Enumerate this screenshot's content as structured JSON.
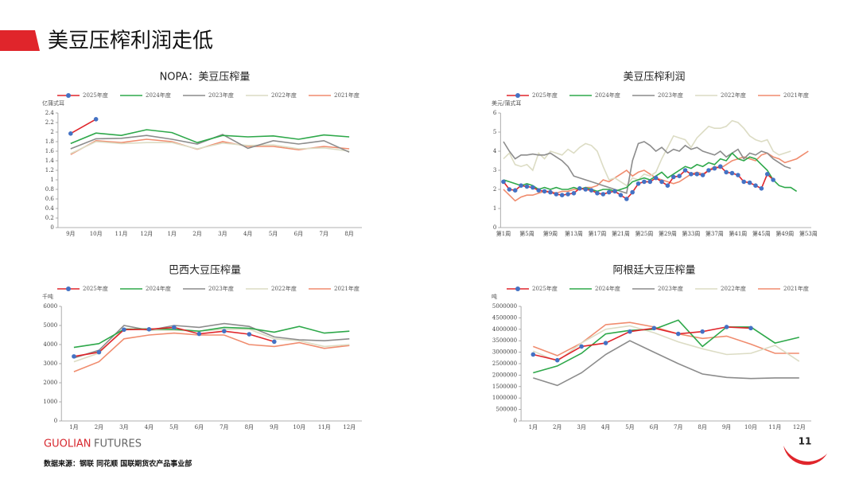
{
  "title": "美豆压榨利润走低",
  "page_number": "11",
  "brand": {
    "name": "GUOLIAN",
    "suffix": "FUTURES"
  },
  "source": "数据来源：钢联  同花顺  国联期货农产品事业部",
  "chart_data": [
    {
      "type": "line",
      "title": "NOPA：美豆压榨量",
      "y_label": "亿蒲式耳",
      "categories": [
        "9月",
        "10月",
        "11月",
        "12月",
        "1月",
        "2月",
        "3月",
        "4月",
        "5月",
        "6月",
        "7月",
        "8月"
      ],
      "ylim": [
        0,
        2.4
      ],
      "yticks": [
        0,
        0.2,
        0.4,
        0.6,
        0.8,
        1,
        1.2,
        1.4,
        1.6,
        1.8,
        2,
        2.2,
        2.4
      ],
      "series": [
        {
          "name": "2025年度",
          "color": "#e0252b",
          "marker": "#4472c4",
          "values": [
            1.97,
            2.27,
            null,
            null,
            null,
            null,
            null,
            null,
            null,
            null,
            null,
            null
          ]
        },
        {
          "name": "2024年度",
          "color": "#2ea84a",
          "values": [
            1.76,
            1.98,
            1.93,
            2.05,
            1.99,
            1.78,
            1.93,
            1.9,
            1.92,
            1.85,
            1.94,
            1.9
          ]
        },
        {
          "name": "2023年度",
          "color": "#8c8c8c",
          "values": [
            1.65,
            1.86,
            1.87,
            1.93,
            1.85,
            1.75,
            1.95,
            1.66,
            1.82,
            1.75,
            1.82,
            1.58
          ]
        },
        {
          "name": "2022年度",
          "color": "#dcdcc4",
          "values": [
            1.55,
            1.8,
            1.76,
            1.78,
            1.78,
            1.65,
            1.77,
            1.72,
            1.73,
            1.65,
            1.67,
            1.6
          ]
        },
        {
          "name": "2021年度",
          "color": "#f08c6e",
          "values": [
            1.53,
            1.82,
            1.78,
            1.85,
            1.8,
            1.64,
            1.8,
            1.7,
            1.7,
            1.63,
            1.7,
            1.65
          ]
        }
      ]
    },
    {
      "type": "line",
      "title": "美豆压榨利润",
      "y_label": "美元/蒲式耳",
      "categories": [
        "第1周",
        null,
        null,
        null,
        "第5周",
        null,
        null,
        null,
        "第9周",
        null,
        null,
        null,
        "第13周",
        null,
        null,
        null,
        "第17周",
        null,
        null,
        null,
        "第21周",
        null,
        null,
        null,
        "第25周",
        null,
        null,
        null,
        "第29周",
        null,
        null,
        null,
        "第33周",
        null,
        null,
        null,
        "第37周",
        null,
        null,
        null,
        "第41周",
        null,
        null,
        null,
        "第45周",
        null,
        null,
        null,
        "第49周",
        null,
        null,
        null,
        "第53周"
      ],
      "ylim": [
        0,
        6
      ],
      "yticks": [
        0,
        1,
        2,
        3,
        4,
        5,
        6
      ],
      "series": [
        {
          "name": "2025年度",
          "color": "#e0252b",
          "marker": "#4472c4",
          "values": [
            2.4,
            2.0,
            1.95,
            2.2,
            2.15,
            2.1,
            1.95,
            1.9,
            1.85,
            1.75,
            1.7,
            1.75,
            1.8,
            2.05,
            2.0,
            1.95,
            1.8,
            1.75,
            1.85,
            1.9,
            1.7,
            1.5,
            1.85,
            2.3,
            2.4,
            2.4,
            2.6,
            2.4,
            2.2,
            2.65,
            2.7,
            3.0,
            2.8,
            2.8,
            2.75,
            3.0,
            3.1,
            3.2,
            2.9,
            2.85,
            2.75,
            2.4,
            2.35,
            2.2,
            2.05,
            2.8,
            2.5,
            null,
            null,
            null,
            null,
            null,
            null
          ]
        },
        {
          "name": "2024年度",
          "color": "#2ea84a",
          "values": [
            2.5,
            2.4,
            2.3,
            2.2,
            2.3,
            2.2,
            2.0,
            2.1,
            2.0,
            2.1,
            2.0,
            2.0,
            2.1,
            2.0,
            2.1,
            2.0,
            1.9,
            2.0,
            2.0,
            1.9,
            2.0,
            2.1,
            2.4,
            2.5,
            2.6,
            2.5,
            2.7,
            2.9,
            2.6,
            2.8,
            3.0,
            3.2,
            3.1,
            3.3,
            3.2,
            3.4,
            3.3,
            3.6,
            3.5,
            3.9,
            3.6,
            3.5,
            3.7,
            3.6,
            3.3,
            3.0,
            2.5,
            2.2,
            2.1,
            2.1,
            1.9,
            null,
            null
          ]
        },
        {
          "name": "2023年度",
          "color": "#8c8c8c",
          "values": [
            4.5,
            4.0,
            3.6,
            3.8,
            3.8,
            3.85,
            3.8,
            3.8,
            3.9,
            3.7,
            3.5,
            3.2,
            2.7,
            2.6,
            2.5,
            2.4,
            2.3,
            2.2,
            2.1,
            2.0,
            1.9,
            1.8,
            3.5,
            4.4,
            4.5,
            4.3,
            4.0,
            4.2,
            3.9,
            4.1,
            4.0,
            4.3,
            4.1,
            4.2,
            4.0,
            3.9,
            3.8,
            4.0,
            3.7,
            3.9,
            4.1,
            3.6,
            3.9,
            3.8,
            4.0,
            3.9,
            3.6,
            3.4,
            3.2,
            3.1,
            null,
            null,
            null
          ]
        },
        {
          "name": "2022年度",
          "color": "#dcdcc4",
          "values": [
            3.6,
            3.9,
            3.3,
            3.2,
            3.3,
            3.0,
            3.9,
            3.6,
            4.0,
            3.9,
            3.8,
            4.1,
            3.9,
            4.2,
            4.4,
            4.3,
            4.0,
            3.2,
            2.5,
            2.6,
            2.4,
            2.2,
            2.6,
            2.5,
            2.8,
            2.7,
            2.9,
            3.6,
            4.2,
            4.8,
            4.7,
            4.6,
            4.2,
            4.7,
            5.0,
            5.3,
            5.2,
            5.2,
            5.3,
            5.6,
            5.5,
            5.2,
            4.8,
            4.6,
            4.5,
            4.6,
            4.0,
            3.8,
            3.9,
            4.0,
            null,
            null,
            null
          ]
        },
        {
          "name": "2021年度",
          "color": "#f08c6e",
          "values": [
            2.0,
            1.7,
            1.4,
            1.6,
            1.7,
            1.7,
            1.8,
            1.9,
            1.9,
            1.8,
            1.9,
            1.9,
            2.0,
            2.0,
            2.1,
            2.1,
            2.2,
            2.5,
            2.4,
            2.6,
            2.8,
            3.0,
            2.7,
            2.9,
            3.0,
            2.8,
            2.6,
            2.5,
            2.4,
            2.3,
            2.4,
            2.6,
            2.8,
            2.9,
            2.8,
            3.0,
            3.2,
            3.1,
            3.3,
            3.5,
            3.6,
            3.7,
            3.6,
            3.5,
            3.8,
            3.9,
            3.7,
            3.6,
            3.4,
            3.5,
            3.6,
            3.8,
            4.0
          ]
        }
      ]
    },
    {
      "type": "line",
      "title": "巴西大豆压榨量",
      "y_label": "千吨",
      "categories": [
        "1月",
        "2月",
        "3月",
        "4月",
        "5月",
        "6月",
        "7月",
        "8月",
        "9月",
        "10月",
        "11月",
        "12月"
      ],
      "ylim": [
        0,
        6000
      ],
      "yticks": [
        0,
        1000,
        2000,
        3000,
        4000,
        5000,
        6000
      ],
      "series": [
        {
          "name": "2025年度",
          "color": "#e0252b",
          "marker": "#4472c4",
          "values": [
            3380,
            3600,
            4780,
            4800,
            4900,
            4560,
            4700,
            4540,
            4150,
            null,
            null,
            null
          ]
        },
        {
          "name": "2024年度",
          "color": "#2ea84a",
          "values": [
            3850,
            4050,
            4800,
            4820,
            4800,
            4700,
            4900,
            4850,
            4650,
            4950,
            4600,
            4700
          ]
        },
        {
          "name": "2023年度",
          "color": "#8c8c8c",
          "values": [
            3300,
            3700,
            5000,
            4750,
            5000,
            4900,
            5100,
            4950,
            4400,
            4250,
            4200,
            4300
          ]
        },
        {
          "name": "2022年度",
          "color": "#dcdcc4",
          "values": [
            3100,
            3550,
            4850,
            4750,
            4750,
            4700,
            4800,
            4800,
            4300,
            4200,
            3900,
            4000
          ]
        },
        {
          "name": "2021年度",
          "color": "#f08c6e",
          "values": [
            2580,
            3100,
            4300,
            4500,
            4600,
            4500,
            4500,
            4000,
            3900,
            4100,
            3800,
            3950
          ]
        }
      ]
    },
    {
      "type": "line",
      "title": "阿根廷大豆压榨量",
      "y_label": "吨",
      "categories": [
        "1月",
        "2月",
        "3月",
        "4月",
        "5月",
        "6月",
        "7月",
        "8月",
        "9月",
        "10月",
        "11月",
        "12月"
      ],
      "ylim": [
        0,
        5000000
      ],
      "yticks": [
        0,
        500000,
        1000000,
        1500000,
        2000000,
        2500000,
        3000000,
        3500000,
        4000000,
        4500000,
        5000000
      ],
      "series": [
        {
          "name": "2025年度",
          "color": "#e0252b",
          "marker": "#4472c4",
          "values": [
            2900000,
            2650000,
            3250000,
            3400000,
            3900000,
            4050000,
            3800000,
            3900000,
            4100000,
            4050000,
            null,
            null
          ]
        },
        {
          "name": "2024年度",
          "color": "#2ea84a",
          "values": [
            2100000,
            2400000,
            2950000,
            3800000,
            3950000,
            4000000,
            4400000,
            3250000,
            4100000,
            4100000,
            3400000,
            3650000
          ]
        },
        {
          "name": "2023年度",
          "color": "#8c8c8c",
          "values": [
            1880000,
            1550000,
            2100000,
            2900000,
            3500000,
            3000000,
            2500000,
            2050000,
            1900000,
            1850000,
            1880000,
            1880000
          ]
        },
        {
          "name": "2022年度",
          "color": "#dcdcc4",
          "values": [
            3050000,
            2600000,
            3400000,
            4000000,
            4150000,
            3850000,
            3450000,
            3150000,
            2900000,
            2950000,
            3300000,
            2600000
          ]
        },
        {
          "name": "2021年度",
          "color": "#f08c6e",
          "values": [
            3250000,
            2850000,
            3400000,
            4200000,
            4300000,
            4100000,
            3800000,
            3600000,
            3700000,
            3350000,
            2950000,
            2950000
          ]
        }
      ]
    }
  ]
}
